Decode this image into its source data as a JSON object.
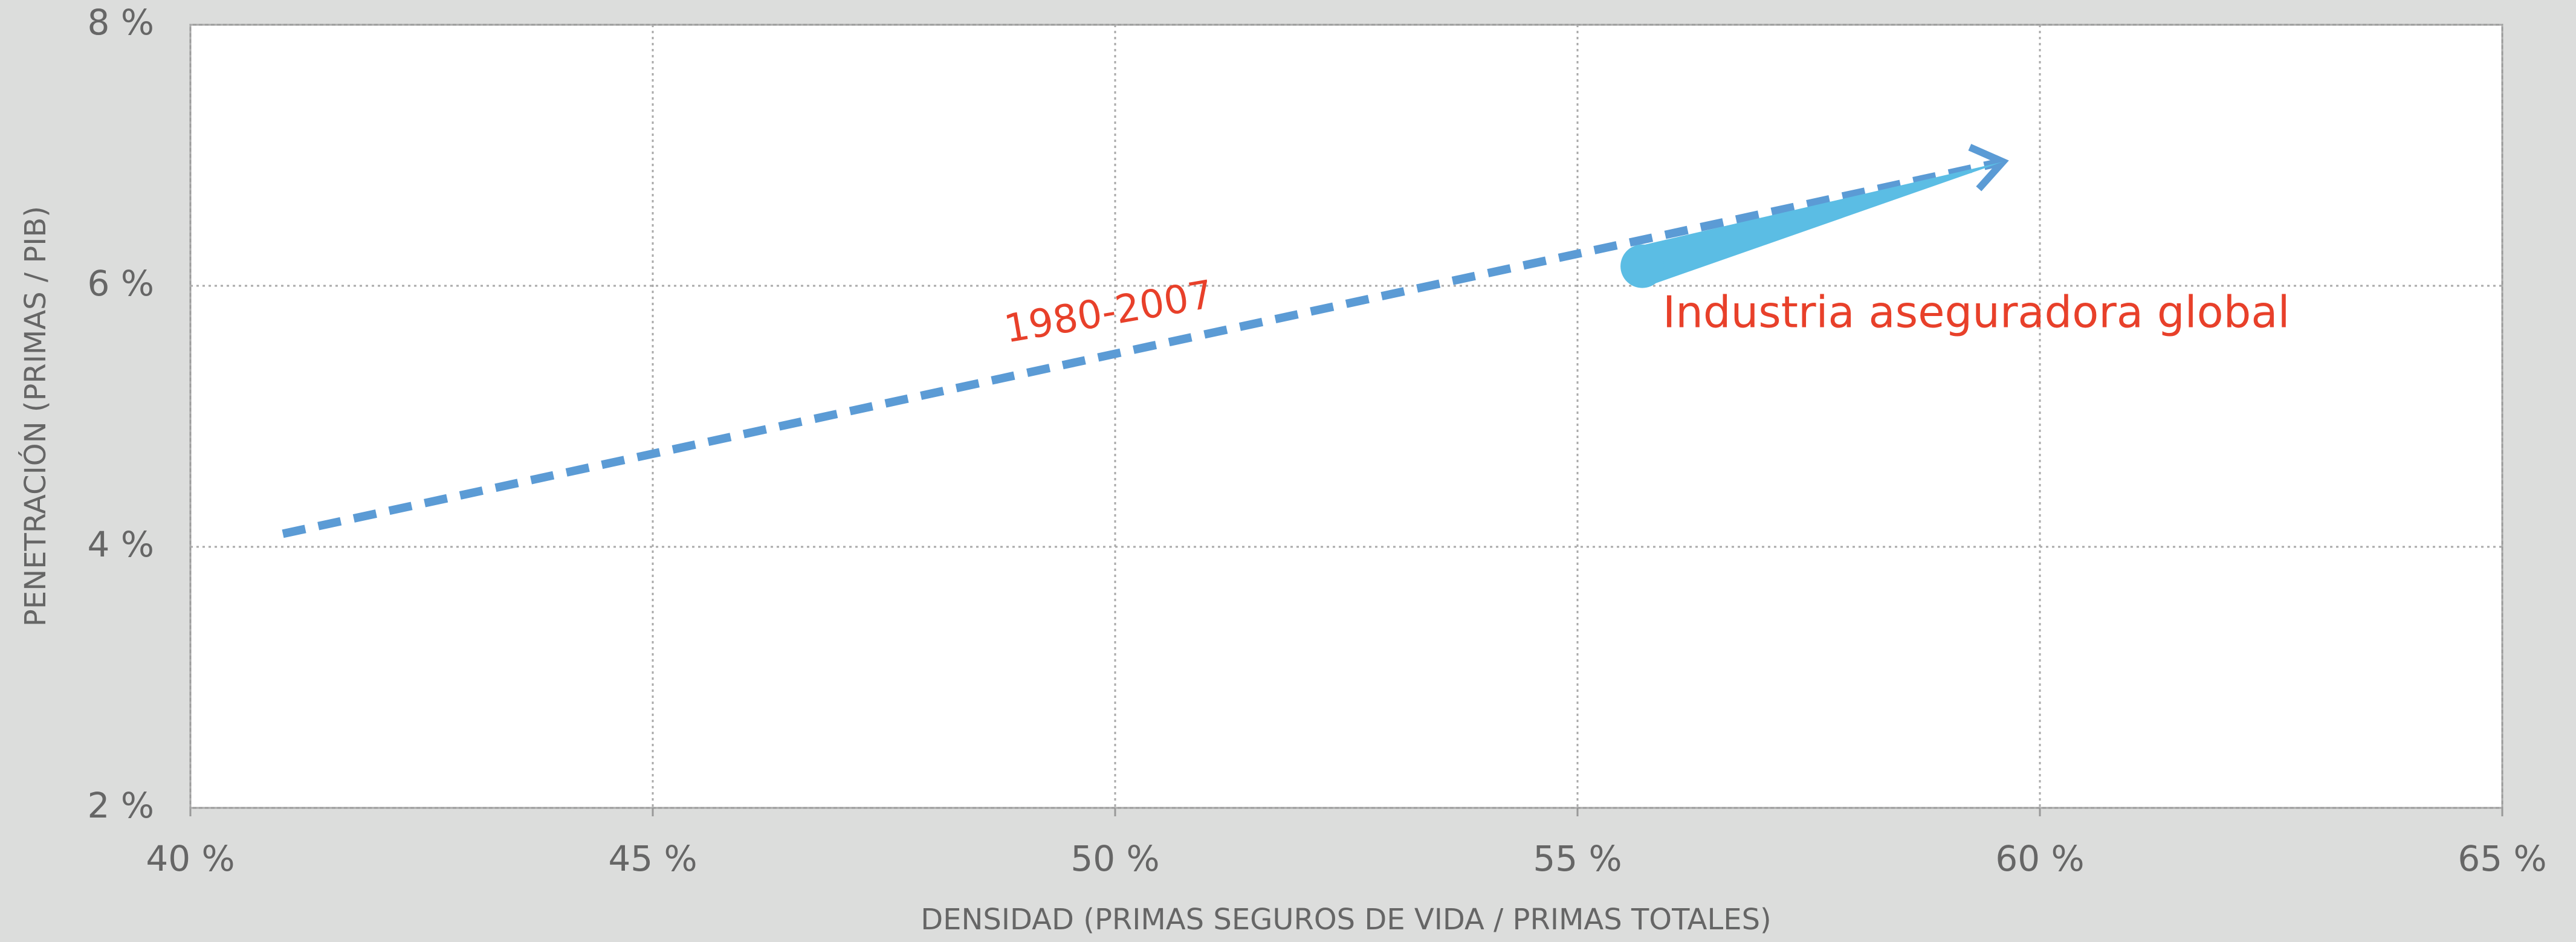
{
  "chart_data": {
    "type": "line",
    "x_label": "DENSIDAD (PRIMAS SEGUROS DE VIDA / PRIMAS TOTALES)",
    "y_label": "PENETRACIÓN (PRIMAS / PIB)",
    "xlim": [
      40,
      65
    ],
    "xticks": [
      {
        "value": 40,
        "label": "40 %"
      },
      {
        "value": 45,
        "label": "45 %"
      },
      {
        "value": 50,
        "label": "50 %"
      },
      {
        "value": 55,
        "label": "55 %"
      },
      {
        "value": 60,
        "label": "60 %"
      },
      {
        "value": 65,
        "label": "65 %"
      }
    ],
    "ylim": [
      2,
      8
    ],
    "yticks": [
      {
        "value": 2,
        "label": "2 %"
      },
      {
        "value": 4,
        "label": "4 %"
      },
      {
        "value": 6,
        "label": "6 %"
      },
      {
        "value": 8,
        "label": "8 %"
      }
    ],
    "grid": true,
    "series": [
      {
        "name": "1980-2007",
        "color": "#5b9bd5",
        "label_color": "#e8402a",
        "x": [
          41,
          59.6
        ],
        "values": [
          4.1,
          6.95
        ]
      },
      {
        "name": "Industria aseguradora global",
        "color": "#5bbde4",
        "label_color": "#e8402a",
        "x": [
          55.7,
          59.6
        ],
        "values": [
          6.15,
          6.95
        ]
      }
    ]
  }
}
